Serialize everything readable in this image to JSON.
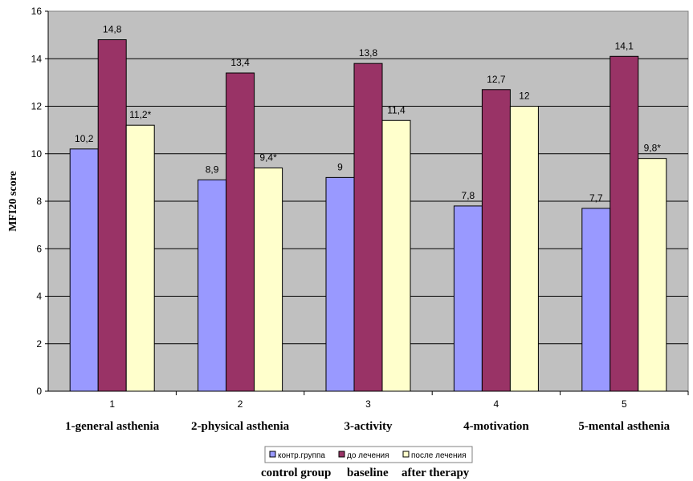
{
  "chart_data": {
    "type": "bar",
    "title": "",
    "xlabel": "",
    "ylabel": "MFI20 score",
    "ylim": [
      0,
      16
    ],
    "ytick_step": 2,
    "yticks": [
      "0",
      "2",
      "4",
      "6",
      "8",
      "10",
      "12",
      "14",
      "16"
    ],
    "grid": true,
    "legend_position": "bottom-center",
    "categories": [
      "1",
      "2",
      "3",
      "4",
      "5"
    ],
    "category_names": [
      "1-general asthenia",
      "2-physical asthenia",
      "3-activity",
      "4-motivation",
      "5-mental asthenia"
    ],
    "series": [
      {
        "name": "контр.группа",
        "name_en": "control group",
        "color": "#9999ff",
        "values": [
          10.2,
          8.9,
          9,
          7.8,
          7.7
        ],
        "labels": [
          "10,2",
          "8,9",
          "9",
          "7,8",
          "7,7"
        ]
      },
      {
        "name": "до лечения",
        "name_en": "baseline",
        "color": "#993366",
        "values": [
          14.8,
          13.4,
          13.8,
          12.7,
          14.1
        ],
        "labels": [
          "14,8",
          "13,4",
          "13,8",
          "12,7",
          "14,1"
        ]
      },
      {
        "name": "после лечения",
        "name_en": "after therapy",
        "color": "#ffffcc",
        "values": [
          11.2,
          9.4,
          11.4,
          12,
          9.8
        ],
        "labels": [
          "11,2*",
          "9,4*",
          "11,4",
          "12",
          "9,8*"
        ]
      }
    ],
    "plot_background": "#c0c0c0"
  }
}
